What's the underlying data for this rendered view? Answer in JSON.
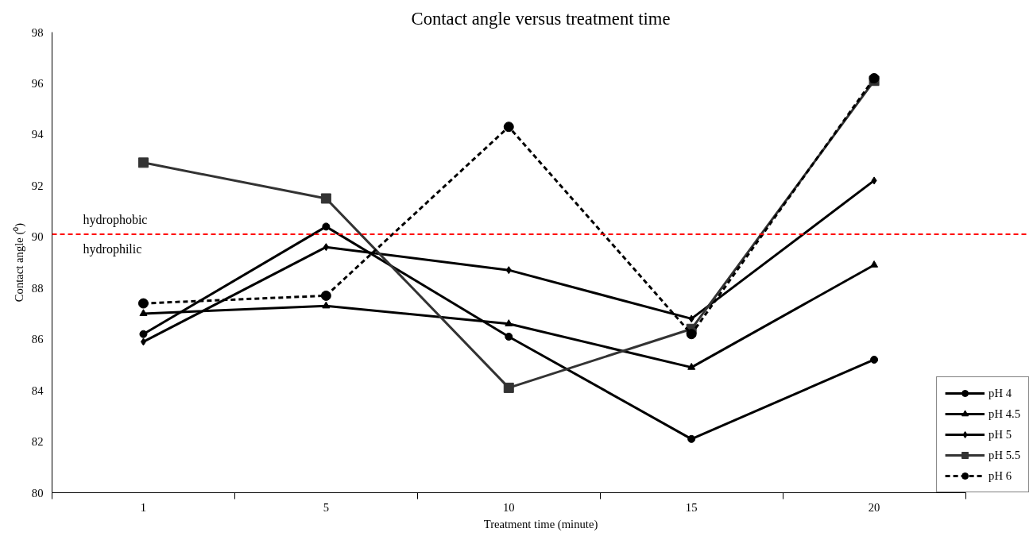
{
  "chart_data": {
    "type": "line",
    "title": "Contact angle versus treatment time",
    "xlabel": "Treatment time (minute)",
    "ylabel": "Contact angle (⁰)",
    "categories": [
      "1",
      "5",
      "10",
      "15",
      "20"
    ],
    "series": [
      {
        "name": "pH 4",
        "color": "#000000",
        "marker": "circle",
        "line_style": "solid",
        "values": [
          86.2,
          90.4,
          86.1,
          82.1,
          85.2
        ]
      },
      {
        "name": "pH 4.5",
        "color": "#000000",
        "marker": "triangle",
        "line_style": "solid",
        "values": [
          87.0,
          87.3,
          86.6,
          84.9,
          88.9
        ]
      },
      {
        "name": "pH 5",
        "color": "#000000",
        "marker": "diamond",
        "line_style": "solid",
        "values": [
          85.9,
          89.6,
          88.7,
          86.8,
          92.2
        ]
      },
      {
        "name": "pH 5.5",
        "color": "#333333",
        "marker": "square",
        "line_style": "solid",
        "values": [
          92.9,
          91.5,
          84.1,
          86.4,
          96.1
        ]
      },
      {
        "name": "pH 6",
        "color": "#000000",
        "marker": "circle",
        "line_style": "dashed",
        "values": [
          87.4,
          87.7,
          94.3,
          86.2,
          96.2
        ]
      }
    ],
    "ylim": [
      80,
      98
    ],
    "yticks": [
      80,
      82,
      84,
      86,
      88,
      90,
      92,
      94,
      96,
      98
    ],
    "ref_lines": [
      {
        "axis": "y",
        "value": 90.1,
        "color": "#ff0000",
        "line_style": "dashed"
      }
    ],
    "annotations": [
      "hydrophobic",
      "hydrophilic"
    ],
    "grid": false,
    "legend": "bottom right"
  }
}
